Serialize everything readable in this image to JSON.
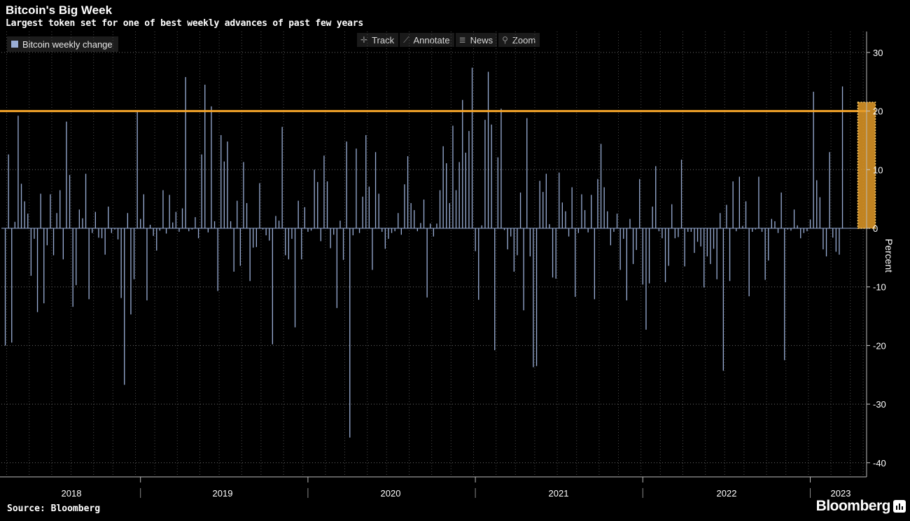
{
  "header": {
    "title": "Bitcoin's Big Week",
    "subtitle": "Largest token set for one of best weekly advances of past few years"
  },
  "legend": {
    "label": "Bitcoin weekly change",
    "color": "#9aaed6"
  },
  "toolbar": {
    "track": "Track",
    "annotate": "Annotate",
    "news": "News",
    "zoom": "Zoom"
  },
  "footer": {
    "source": "Source: Bloomberg",
    "brand": "Bloomberg"
  },
  "colors": {
    "bar": "#9aaed6",
    "reference_line": "#f5a52a",
    "highlight": "#e39a27",
    "background": "#000000"
  },
  "chart_data": {
    "type": "bar",
    "title": "Bitcoin's Big Week",
    "subtitle": "Largest token set for one of best weekly advances of past few years",
    "ylabel": "Percent",
    "ylim": [
      -42,
      34
    ],
    "yticks": [
      30,
      20,
      10,
      0,
      -10,
      -20,
      -30,
      -40
    ],
    "grid": true,
    "legend_position": "top-left",
    "x_tick_labels": [
      "2018",
      "2019",
      "2020",
      "2021",
      "2022",
      "2023"
    ],
    "reference_line": {
      "value": 20
    },
    "highlight": {
      "from_week": 265,
      "to_week": 270,
      "ymin": 0,
      "ymax": 21.5
    },
    "series": [
      {
        "name": "Bitcoin weekly change",
        "values": [
          -20,
          12.6,
          -19.5,
          1.1,
          19.2,
          7.6,
          4.6,
          2.5,
          -8.1,
          -1.8,
          -14.3,
          5.9,
          -12.8,
          -2.9,
          5.8,
          -4.6,
          2.6,
          6.5,
          -5.3,
          18.2,
          9.1,
          -13.4,
          -9.7,
          3.2,
          1.7,
          9.3,
          -12.1,
          -0.8,
          2.8,
          -1.6,
          -1.7,
          -4.5,
          3.7,
          -0.8,
          -0.2,
          -1.9,
          -11.9,
          -26.7,
          2.6,
          -14.7,
          -8.7,
          20,
          1.6,
          5.8,
          -12.3,
          0.6,
          -1.3,
          -3.8,
          -0.4,
          6.5,
          -0.9,
          5.7,
          1,
          2.8,
          -0.6,
          3.4,
          25.8,
          -0.5,
          -0.2,
          1.9,
          -1.7,
          12.6,
          24.5,
          -0.7,
          20.8,
          1.2,
          -10.7,
          15.9,
          11.4,
          14.8,
          1.2,
          -7.4,
          4.7,
          -6.4,
          11.3,
          4.3,
          -9,
          -3.3,
          -3.2,
          7.7,
          -0.2,
          -1.2,
          -2.1,
          -19.8,
          2.1,
          1.3,
          17.3,
          -4.6,
          -5.3,
          -1.8,
          -16.9,
          4.7,
          -5.3,
          3.6,
          -0.6,
          -0.4,
          10,
          7.9,
          -2.2,
          12.4,
          8,
          -3.4,
          -1.1,
          -13.6,
          1.3,
          -5.4,
          14.8,
          -35.7,
          -1.2,
          13.6,
          -0.8,
          5.4,
          15.9,
          7.1,
          -7.1,
          13,
          5.9,
          -0.6,
          -3.5,
          -1.8,
          -0.8,
          -0.5,
          2.6,
          -1.1,
          7.5,
          12.3,
          4.3,
          3.1,
          -0.5,
          0.9,
          4.9,
          -11.8,
          0.8,
          -1.4,
          0.8,
          6.5,
          14,
          11.1,
          4.3,
          17.5,
          6.5,
          11.3,
          21.9,
          12.9,
          16.6,
          27.4,
          -3.9,
          -12.2,
          0.5,
          18.5,
          26.7,
          17.7,
          -20.8,
          12.1,
          20.4,
          -0.3,
          -3.6,
          -1.4,
          -7.4,
          -4.6,
          6.1,
          -14,
          18.8,
          -4.8,
          -23.7,
          -23.5,
          8.1,
          6.2,
          9.3,
          0.7,
          -8.4,
          -8.6,
          9.5,
          4.4,
          2.9,
          -1.4,
          7,
          -11.7,
          -0.8,
          5.8,
          3.1,
          -0.7,
          5.7,
          -12.1,
          8.4,
          14.4,
          7,
          2.9,
          -2.9,
          -0.6,
          2.5,
          -7.1,
          -1.8,
          -12.3,
          1.6,
          -6.1,
          -3.7,
          8.4,
          -9.6,
          -17.3,
          -9.4,
          3.7,
          10.6,
          -0.5,
          -1.7,
          -9.2,
          -6.4,
          4.1,
          -1.7,
          -1.5,
          11.7,
          -6.5,
          -0.6,
          -0.6,
          -4.2,
          -2.3,
          -3.1,
          -10.1,
          -4.8,
          -6.1,
          -3.5,
          -8.7,
          2.6,
          -24.3,
          4,
          -9,
          8,
          -0.5,
          8.8,
          0.4,
          4.6,
          -11.6,
          -0.6,
          -0.2,
          8.8,
          -0.6,
          -8.8,
          -5.5,
          1.6,
          1.2,
          -0.8,
          6.1,
          -22.5,
          -0.2,
          -0.4,
          3.2,
          0.5,
          -1.7,
          -0.8,
          -0.5,
          1.5,
          23.3,
          8.2,
          5.3,
          -3.6,
          -4.8,
          13,
          -1.6,
          -4,
          -4.5,
          24.2,
          0,
          0,
          0
        ]
      }
    ]
  }
}
